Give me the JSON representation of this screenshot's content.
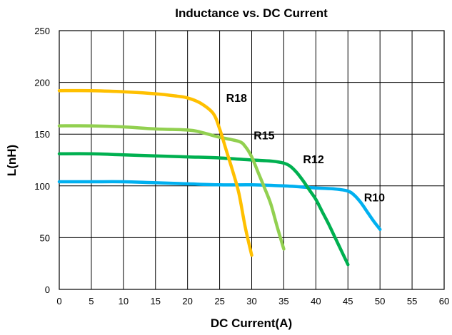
{
  "chart_data": {
    "type": "line",
    "title": "Inductance vs. DC Current",
    "xlabel": "DC Current(A)",
    "ylabel": "L(nH)",
    "xlim": [
      0,
      60
    ],
    "ylim": [
      0,
      250
    ],
    "xticks": [
      0,
      5,
      10,
      15,
      20,
      25,
      30,
      35,
      40,
      45,
      50,
      55,
      60
    ],
    "yticks": [
      0,
      50,
      100,
      150,
      200,
      250
    ],
    "grid": true,
    "legend": "none",
    "series": [
      {
        "name": "R18",
        "color": "#FFC000",
        "x": [
          0,
          5,
          10,
          15,
          18,
          20,
          22,
          24,
          25,
          26,
          27,
          28,
          29,
          30
        ],
        "y": [
          192,
          192,
          191,
          189,
          187,
          185,
          180,
          170,
          155,
          135,
          115,
          93,
          60,
          33
        ]
      },
      {
        "name": "R15",
        "color": "#92D050",
        "x": [
          0,
          5,
          10,
          15,
          20,
          22,
          25,
          28,
          29,
          30,
          31,
          32,
          33,
          34,
          35
        ],
        "y": [
          158,
          158,
          157,
          155,
          154,
          152,
          147,
          143,
          138,
          128,
          113,
          98,
          82,
          60,
          39
        ]
      },
      {
        "name": "R12",
        "color": "#00B050",
        "x": [
          0,
          5,
          10,
          15,
          20,
          25,
          30,
          33,
          35,
          36,
          37,
          38,
          39,
          40,
          41,
          42,
          43,
          44,
          45
        ],
        "y": [
          131,
          131,
          130,
          129,
          128,
          127,
          125,
          124,
          122,
          119,
          113,
          105,
          96,
          87,
          75,
          63,
          50,
          37,
          24
        ]
      },
      {
        "name": "R10",
        "color": "#00B0F0",
        "x": [
          0,
          5,
          10,
          15,
          20,
          25,
          30,
          35,
          40,
          43,
          45,
          46,
          47,
          48,
          49,
          50
        ],
        "y": [
          104,
          104,
          104,
          103,
          102,
          101,
          101,
          100,
          98,
          97,
          95,
          91,
          84,
          75,
          66,
          58
        ]
      }
    ],
    "annotations": [
      {
        "text": "R18",
        "x": 26.0,
        "y": 181
      },
      {
        "text": "R15",
        "x": 30.3,
        "y": 145
      },
      {
        "text": "R12",
        "x": 38.0,
        "y": 122
      },
      {
        "text": "R10",
        "x": 47.5,
        "y": 85
      }
    ]
  }
}
